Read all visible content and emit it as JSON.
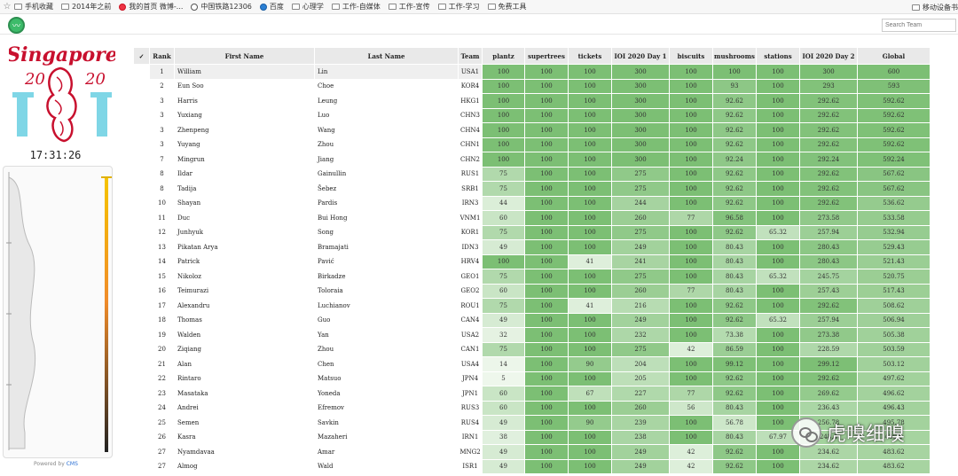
{
  "bookmarks": {
    "items": [
      {
        "label": "手机收藏",
        "icon": "folder-icon"
      },
      {
        "label": "2014年之前",
        "icon": "folder-icon"
      },
      {
        "label": "我的首页 微博-...",
        "icon": "weibo-icon"
      },
      {
        "label": "中国铁路12306",
        "icon": "rail-icon"
      },
      {
        "label": "百度",
        "icon": "baidu-icon"
      },
      {
        "label": "心理学",
        "icon": "folder-icon"
      },
      {
        "label": "工作-自媒体",
        "icon": "folder-icon"
      },
      {
        "label": "工作-宣传",
        "icon": "folder-icon"
      },
      {
        "label": "工作-学习",
        "icon": "folder-icon"
      },
      {
        "label": "免费工具",
        "icon": "folder-icon"
      }
    ],
    "mobile_label": "移动设备书"
  },
  "search": {
    "placeholder": "Search Team"
  },
  "logo": {
    "line1": "Singapore",
    "year_left": "20",
    "year_right": "20"
  },
  "clock": "17:31:26",
  "powered": {
    "prefix": "Powered by",
    "brand": "CMS"
  },
  "table": {
    "headers": [
      "✓",
      "Rank",
      "First Name",
      "Last Name",
      "Team",
      "plantz",
      "supertrees",
      "tickets",
      "IOI 2020 Day 1",
      "biscuits",
      "mushrooms",
      "stations",
      "IOI 2020 Day 2",
      "Global"
    ],
    "rows": [
      [
        "1",
        "William",
        "Lin",
        "USA1",
        "100",
        "100",
        "100",
        "300",
        "100",
        "100",
        "100",
        "300",
        "600"
      ],
      [
        "2",
        "Eun Soo",
        "Choe",
        "KOR4",
        "100",
        "100",
        "100",
        "300",
        "100",
        "93",
        "100",
        "293",
        "593"
      ],
      [
        "3",
        "Harris",
        "Leung",
        "HKG1",
        "100",
        "100",
        "100",
        "300",
        "100",
        "92.62",
        "100",
        "292.62",
        "592.62"
      ],
      [
        "3",
        "Yuxiang",
        "Luo",
        "CHN3",
        "100",
        "100",
        "100",
        "300",
        "100",
        "92.62",
        "100",
        "292.62",
        "592.62"
      ],
      [
        "3",
        "Zhenpeng",
        "Wang",
        "CHN4",
        "100",
        "100",
        "100",
        "300",
        "100",
        "92.62",
        "100",
        "292.62",
        "592.62"
      ],
      [
        "3",
        "Yuyang",
        "Zhou",
        "CHN1",
        "100",
        "100",
        "100",
        "300",
        "100",
        "92.62",
        "100",
        "292.62",
        "592.62"
      ],
      [
        "7",
        "Mingrun",
        "Jiang",
        "CHN2",
        "100",
        "100",
        "100",
        "300",
        "100",
        "92.24",
        "100",
        "292.24",
        "592.24"
      ],
      [
        "8",
        "Ildar",
        "Gainullin",
        "RUS1",
        "75",
        "100",
        "100",
        "275",
        "100",
        "92.62",
        "100",
        "292.62",
        "567.62"
      ],
      [
        "8",
        "Tadija",
        "Šebez",
        "SRB1",
        "75",
        "100",
        "100",
        "275",
        "100",
        "92.62",
        "100",
        "292.62",
        "567.62"
      ],
      [
        "10",
        "Shayan",
        "Pardis",
        "IRN3",
        "44",
        "100",
        "100",
        "244",
        "100",
        "92.62",
        "100",
        "292.62",
        "536.62"
      ],
      [
        "11",
        "Duc",
        "Bui Hong",
        "VNM1",
        "60",
        "100",
        "100",
        "260",
        "77",
        "96.58",
        "100",
        "273.58",
        "533.58"
      ],
      [
        "12",
        "Junhyuk",
        "Song",
        "KOR1",
        "75",
        "100",
        "100",
        "275",
        "100",
        "92.62",
        "65.32",
        "257.94",
        "532.94"
      ],
      [
        "13",
        "Pikatan Arya",
        "Bramajati",
        "IDN3",
        "49",
        "100",
        "100",
        "249",
        "100",
        "80.43",
        "100",
        "280.43",
        "529.43"
      ],
      [
        "14",
        "Patrick",
        "Pavić",
        "HRV4",
        "100",
        "100",
        "41",
        "241",
        "100",
        "80.43",
        "100",
        "280.43",
        "521.43"
      ],
      [
        "15",
        "Nikoloz",
        "Birkadze",
        "GEO1",
        "75",
        "100",
        "100",
        "275",
        "100",
        "80.43",
        "65.32",
        "245.75",
        "520.75"
      ],
      [
        "16",
        "Teimurazi",
        "Toloraia",
        "GEO2",
        "60",
        "100",
        "100",
        "260",
        "77",
        "80.43",
        "100",
        "257.43",
        "517.43"
      ],
      [
        "17",
        "Alexandru",
        "Luchianov",
        "ROU1",
        "75",
        "100",
        "41",
        "216",
        "100",
        "92.62",
        "100",
        "292.62",
        "508.62"
      ],
      [
        "18",
        "Thomas",
        "Guo",
        "CAN4",
        "49",
        "100",
        "100",
        "249",
        "100",
        "92.62",
        "65.32",
        "257.94",
        "506.94"
      ],
      [
        "19",
        "Walden",
        "Yan",
        "USA2",
        "32",
        "100",
        "100",
        "232",
        "100",
        "73.38",
        "100",
        "273.38",
        "505.38"
      ],
      [
        "20",
        "Ziqiang",
        "Zhou",
        "CAN1",
        "75",
        "100",
        "100",
        "275",
        "42",
        "86.59",
        "100",
        "228.59",
        "503.59"
      ],
      [
        "21",
        "Alan",
        "Chen",
        "USA4",
        "14",
        "100",
        "90",
        "204",
        "100",
        "99.12",
        "100",
        "299.12",
        "503.12"
      ],
      [
        "22",
        "Rintaro",
        "Matsuo",
        "JPN4",
        "5",
        "100",
        "100",
        "205",
        "100",
        "92.62",
        "100",
        "292.62",
        "497.62"
      ],
      [
        "23",
        "Masataka",
        "Yoneda",
        "JPN1",
        "60",
        "100",
        "67",
        "227",
        "77",
        "92.62",
        "100",
        "269.62",
        "496.62"
      ],
      [
        "24",
        "Andrei",
        "Efremov",
        "RUS3",
        "60",
        "100",
        "100",
        "260",
        "56",
        "80.43",
        "100",
        "236.43",
        "496.43"
      ],
      [
        "25",
        "Semen",
        "Savkin",
        "RUS4",
        "49",
        "100",
        "90",
        "239",
        "100",
        "56.78",
        "100",
        "256.78",
        "495.78"
      ],
      [
        "26",
        "Kasra",
        "Mazaheri",
        "IRN1",
        "38",
        "100",
        "100",
        "238",
        "100",
        "80.43",
        "67.97",
        "248.4",
        "486.4"
      ],
      [
        "27",
        "Nyamdavaa",
        "Amar",
        "MNG2",
        "49",
        "100",
        "100",
        "249",
        "42",
        "92.62",
        "100",
        "234.62",
        "483.62"
      ],
      [
        "27",
        "Almog",
        "Wald",
        "ISR1",
        "49",
        "100",
        "100",
        "249",
        "42",
        "92.62",
        "100",
        "234.62",
        "483.62"
      ]
    ]
  },
  "colors": {
    "accent": "#3dbb6a",
    "score_high": "#7cbf74",
    "score_low": "#eef7ec",
    "logo_red": "#c8102e",
    "logo_cyan": "#7fd6e6"
  },
  "watermark": {
    "text": "虎嗅细嗅",
    "icon": "wechat-icon"
  }
}
